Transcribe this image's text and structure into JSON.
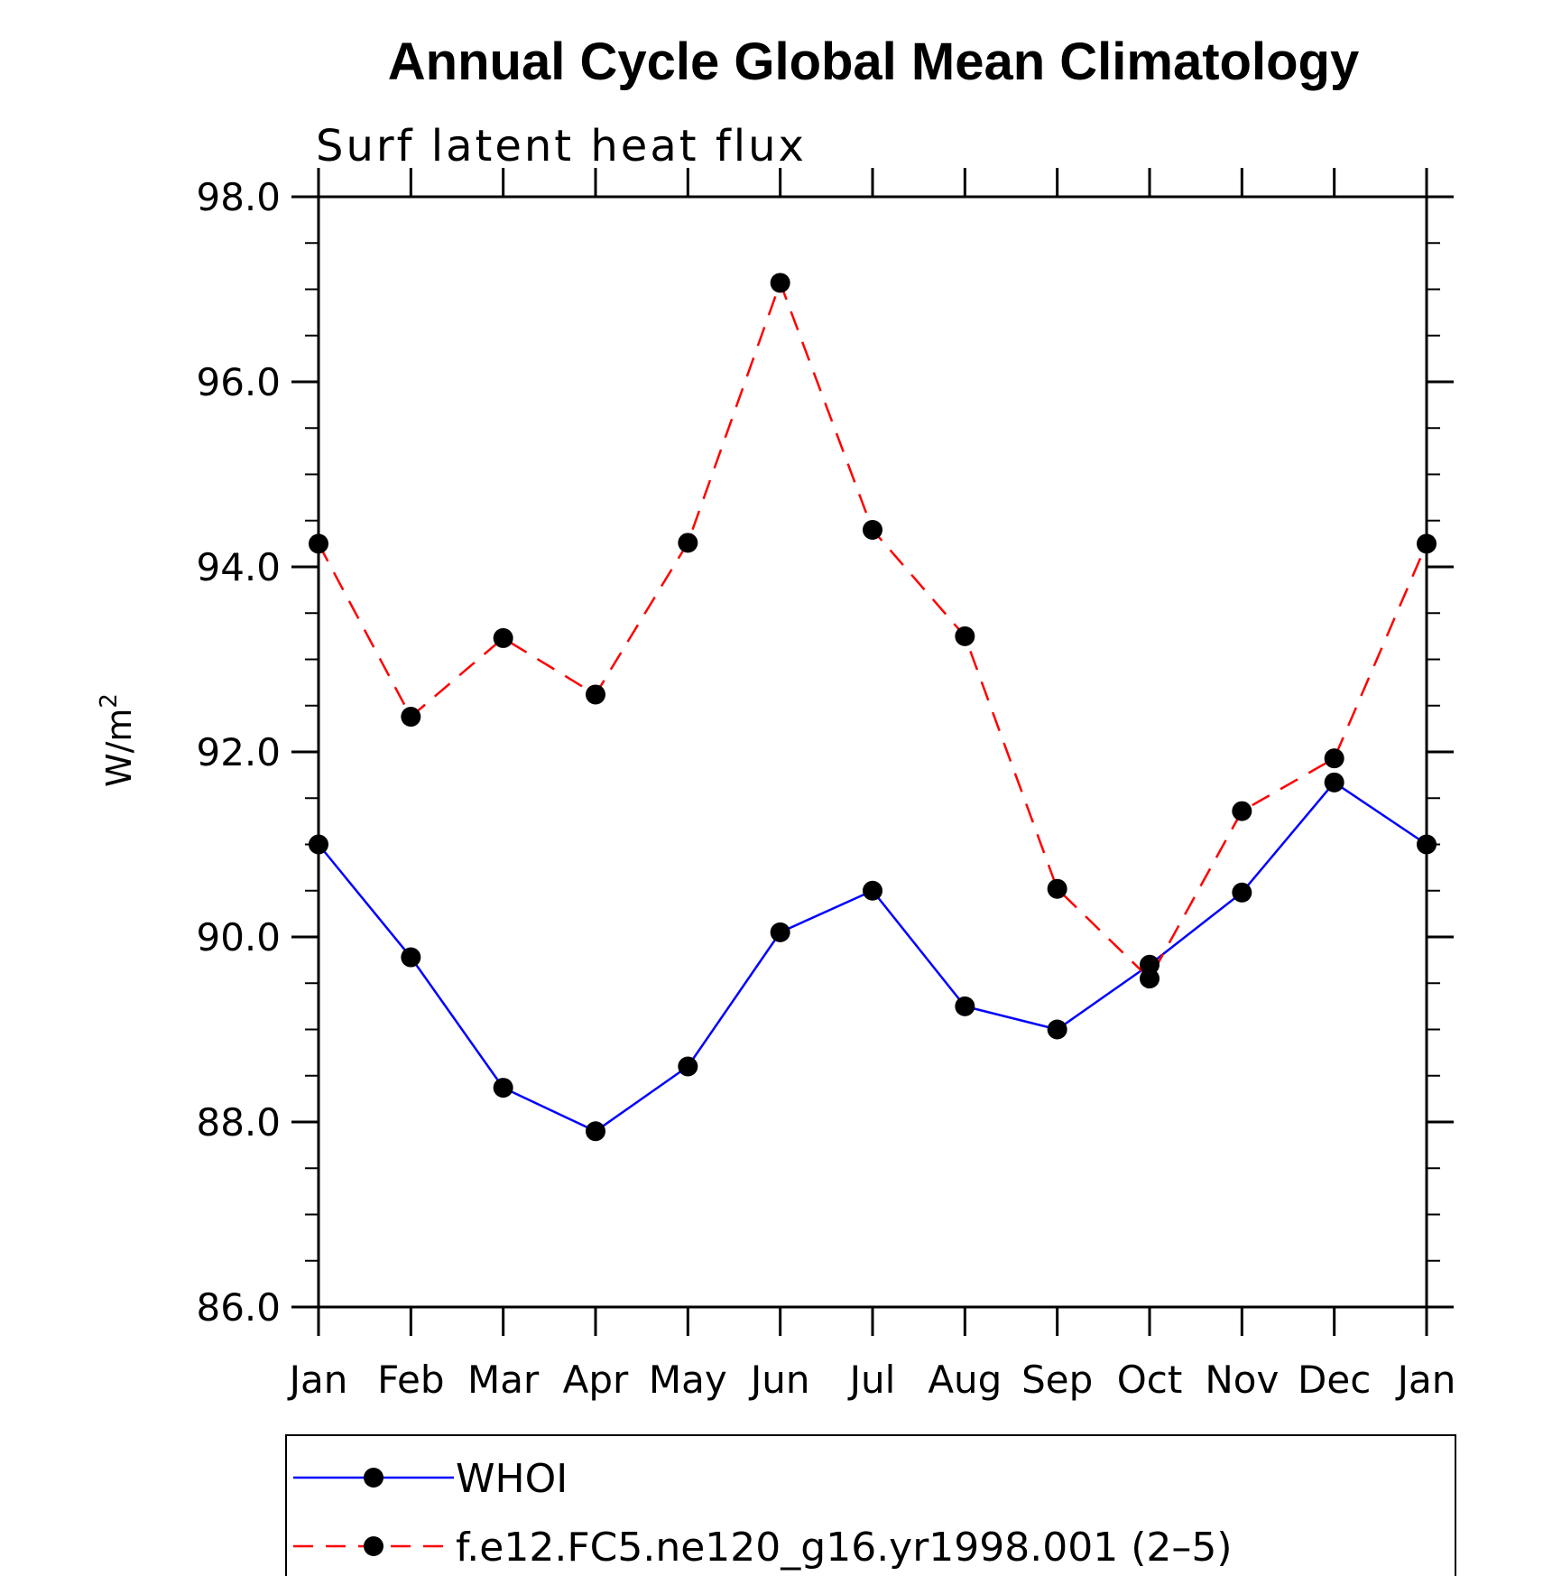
{
  "chart_data": {
    "type": "line",
    "title": "Annual Cycle Global Mean Climatology",
    "subtitle": "Surf latent heat flux",
    "ylabel": "W/m",
    "ylabel_sup": "2",
    "categories": [
      "Jan",
      "Feb",
      "Mar",
      "Apr",
      "May",
      "Jun",
      "Jul",
      "Aug",
      "Sep",
      "Oct",
      "Nov",
      "Dec",
      "Jan"
    ],
    "ylim": [
      86.0,
      98.0
    ],
    "yticks": [
      "86.0",
      "88.0",
      "90.0",
      "92.0",
      "94.0",
      "96.0",
      "98.0"
    ],
    "grid": false,
    "legend_position": "bottom",
    "series": [
      {
        "name": "WHOI",
        "color": "#0000ff",
        "line_style": "solid",
        "marker": "filled-circle",
        "values": [
          91.0,
          89.78,
          88.37,
          87.9,
          88.6,
          90.05,
          90.5,
          89.25,
          89.0,
          89.7,
          90.48,
          91.67,
          91.0
        ]
      },
      {
        "name": "f.e12.FC5.ne120_g16.yr1998.001 (2–5)",
        "color": "#ff0000",
        "line_style": "dashed",
        "marker": "filled-circle",
        "values": [
          94.25,
          92.38,
          93.23,
          92.62,
          94.26,
          97.07,
          94.4,
          93.25,
          90.52,
          89.55,
          91.36,
          91.93,
          94.25
        ]
      }
    ]
  }
}
